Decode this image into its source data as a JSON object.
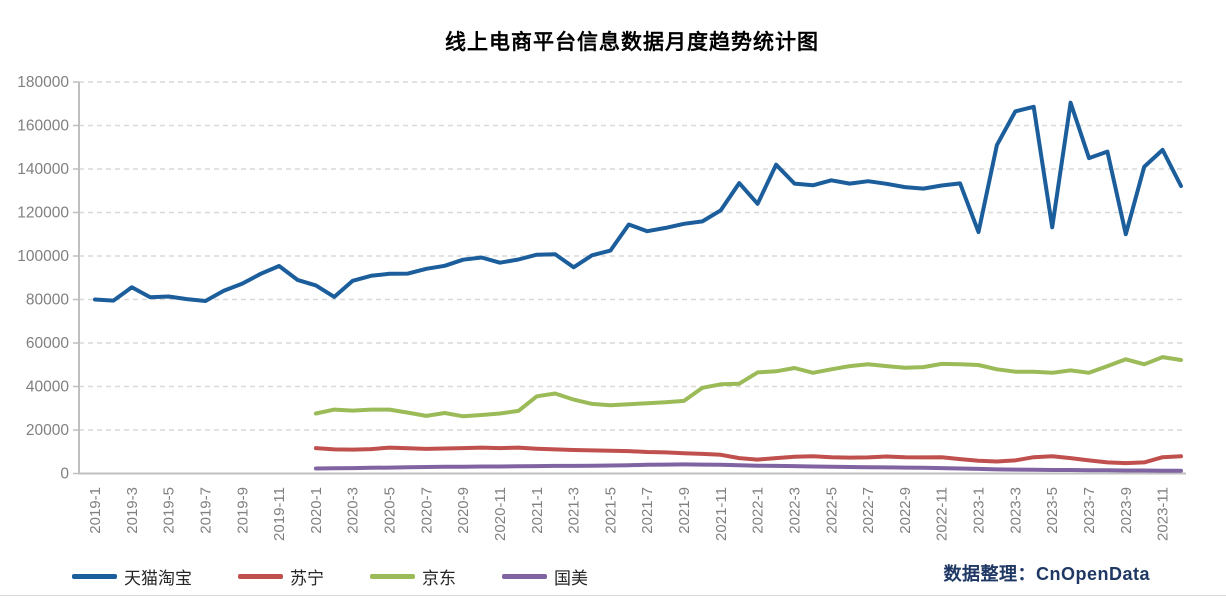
{
  "chart_data": {
    "type": "line",
    "title": "线上电商平台信息数据月度趋势统计图",
    "source": "数据整理：CnOpenData",
    "xlabel": "",
    "ylabel": "",
    "ylim": [
      0,
      180000
    ],
    "ytick_step": 20000,
    "grid": "horizontal-dashed",
    "legend_position": "bottom-left",
    "x_tick_interval": 2,
    "categories": [
      "2019-1",
      "2019-2",
      "2019-3",
      "2019-4",
      "2019-5",
      "2019-6",
      "2019-7",
      "2019-8",
      "2019-9",
      "2019-10",
      "2019-11",
      "2019-12",
      "2020-1",
      "2020-2",
      "2020-3",
      "2020-4",
      "2020-5",
      "2020-6",
      "2020-7",
      "2020-8",
      "2020-9",
      "2020-10",
      "2020-11",
      "2020-12",
      "2021-1",
      "2021-2",
      "2021-3",
      "2021-4",
      "2021-5",
      "2021-6",
      "2021-7",
      "2021-8",
      "2021-9",
      "2021-10",
      "2021-11",
      "2021-12",
      "2022-1",
      "2022-2",
      "2022-3",
      "2022-4",
      "2022-5",
      "2022-6",
      "2022-7",
      "2022-8",
      "2022-9",
      "2022-10",
      "2022-11",
      "2022-12",
      "2023-1",
      "2023-2",
      "2023-3",
      "2023-4",
      "2023-5",
      "2023-6",
      "2023-7",
      "2023-8",
      "2023-9",
      "2023-10",
      "2023-11",
      "2023-12"
    ],
    "series": [
      {
        "key": "tmall-taobao",
        "name": "天猫淘宝",
        "color": "#1b5e9b",
        "start_index": 0,
        "values": [
          80000,
          79500,
          85600,
          81000,
          81400,
          80200,
          79300,
          84000,
          87300,
          91800,
          95400,
          89000,
          86500,
          81200,
          88600,
          90900,
          91800,
          91900,
          94100,
          95500,
          98300,
          99300,
          96900,
          98400,
          100600,
          100800,
          94800,
          100300,
          102500,
          114500,
          111400,
          112900,
          114800,
          115900,
          121000,
          133500,
          124000,
          142000,
          133300,
          132500,
          134800,
          133300,
          134400,
          133200,
          131700,
          131000,
          132400,
          133400,
          111000,
          151000,
          166500,
          168600,
          113200,
          170500,
          145000,
          148000,
          110000,
          141000,
          148800,
          132200
        ]
      },
      {
        "key": "suning",
        "name": "苏宁",
        "color": "#c0504d",
        "start_index": 12,
        "values": [
          11700,
          11100,
          11000,
          11200,
          11900,
          11600,
          11300,
          11500,
          11700,
          11900,
          11700,
          11900,
          11400,
          11100,
          10800,
          10600,
          10500,
          10300,
          9900,
          9700,
          9300,
          9000,
          8600,
          7100,
          6400,
          7100,
          7700,
          7900,
          7500,
          7300,
          7400,
          7800,
          7500,
          7400,
          7500,
          6600,
          5900,
          5500,
          6000,
          7500,
          7900,
          7100,
          6000,
          5100,
          4800,
          5100,
          7500,
          7900
        ]
      },
      {
        "key": "jd",
        "name": "京东",
        "color": "#9bbb59",
        "start_index": 12,
        "values": [
          27600,
          29400,
          28900,
          29400,
          29400,
          28000,
          26500,
          27800,
          26300,
          26900,
          27600,
          28800,
          35500,
          36800,
          34000,
          32000,
          31400,
          31800,
          32300,
          32800,
          33400,
          39400,
          41000,
          41300,
          46500,
          47000,
          48500,
          46300,
          47900,
          49400,
          50200,
          49400,
          48600,
          48900,
          50400,
          50200,
          49900,
          47900,
          46800,
          46800,
          46300,
          47400,
          46300,
          49400,
          52500,
          50200,
          53500,
          52200
        ]
      },
      {
        "key": "gome",
        "name": "国美",
        "color": "#8064a2",
        "start_index": 12,
        "values": [
          2300,
          2400,
          2500,
          2600,
          2700,
          2900,
          3000,
          3100,
          3100,
          3200,
          3200,
          3300,
          3400,
          3500,
          3500,
          3600,
          3700,
          3800,
          4000,
          4100,
          4200,
          4100,
          4000,
          3800,
          3600,
          3500,
          3400,
          3200,
          3100,
          3000,
          2900,
          2800,
          2700,
          2600,
          2500,
          2300,
          2100,
          1900,
          1800,
          1700,
          1600,
          1600,
          1500,
          1500,
          1400,
          1400,
          1300,
          1300
        ]
      }
    ],
    "style": {
      "axis_color": "#bfbfbf",
      "gridline_color": "#d9d9d9",
      "tick_label_color": "#808080",
      "line_width": 4
    }
  }
}
